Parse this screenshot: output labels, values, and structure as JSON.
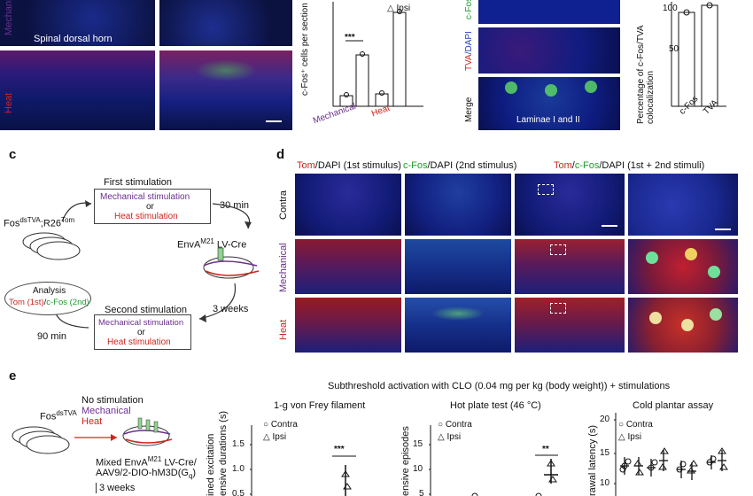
{
  "panel_a": {
    "row_labels": [
      "Mechanical",
      "Heat"
    ],
    "inset_label": "Spinal dorsal horn"
  },
  "panel_b": {
    "ylabel": "c-Fos⁺ cells per section",
    "legend": [
      "Ipsi"
    ],
    "categories": [
      "Mechanical",
      "Heat"
    ],
    "significance": "***"
  },
  "panel_merge": {
    "row_labels_top": "c-Fos",
    "row_label_tva": "TVA",
    "row_label_tva_suffix": "/DAPI",
    "row_label_dapi": "c-Fos/DAPI",
    "row_label_merge": "Merge",
    "inset_label": "Laminae I and II"
  },
  "panel_coloc": {
    "ylabel": "Percentage of c-Fos/TVA colocalization",
    "yticks": [
      "100",
      "50"
    ],
    "categories": [
      "c-Fos",
      "TVA"
    ]
  },
  "panel_c": {
    "letter": "c",
    "first_stimulation": "First stimulation",
    "mech_stim": "Mechanical stimulation",
    "or": "or",
    "heat_stim": "Heat stimulation",
    "min30": "30 min",
    "mouse_label": "Fos",
    "mouse_sup1": "dsTVA",
    "mouse_mid": ";R26",
    "mouse_sup2": "Tom",
    "virus": "EnvA",
    "virus_sup": "M21",
    "virus_suffix": " LV-Cre",
    "weeks3": "3 weeks",
    "second_stimulation": "Second stimulation",
    "min90": "90 min",
    "analysis": "Analysis",
    "analysis_tom": "Tom (1st)",
    "analysis_sep": "/",
    "analysis_cfos": "c-Fos (2nd)"
  },
  "panel_d": {
    "letter": "d",
    "col1_tom": "Tom",
    "col1_rest": "/DAPI (1st stimulus)",
    "col2_cfos": "c-Fos",
    "col2_rest": "/DAPI (2nd stimulus)",
    "col3_tom": "Tom",
    "col3_slash": "/",
    "col3_cfos": "c-Fos",
    "col3_rest": "/DAPI (1st + 2nd stimuli)",
    "rows": [
      "Contra",
      "Mechanical",
      "Heat"
    ]
  },
  "panel_e": {
    "letter": "e",
    "title": "Subthreshold activation with CLO (0.04 mg per kg (body weight)) + stimulations",
    "mouse_label": "Fos",
    "mouse_sup": "dsTVA",
    "conditions": [
      "No stimulation",
      "Mechanical",
      "Heat"
    ],
    "virus_line1": "Mixed EnvA",
    "virus_sup": "M21",
    "virus_line1_suffix": " LV-Cre/",
    "virus_line2": "AAV9/2-DIO-hM3D(G",
    "virus_line2_sub": "q",
    "virus_line2_end": ")",
    "weeks": "3 weeks",
    "side_label": "ined excitation",
    "subplots": [
      {
        "title": "1-g von Frey filament",
        "ylabel": "ensive durations (s)",
        "legend": [
          "Contra",
          "Ipsi"
        ],
        "yticks": [
          "1.5",
          "1.0",
          "0.5"
        ],
        "significance": "***"
      },
      {
        "title": "Hot plate test (46 °C)",
        "ylabel": "ensive episodes",
        "legend": [
          "Contra",
          "Ipsi"
        ],
        "yticks": [
          "15",
          "10",
          "5"
        ],
        "significance": "**"
      },
      {
        "title": "Cold plantar assay",
        "ylabel": "rawal latency (s)",
        "legend": [
          "Contra",
          "Ipsi"
        ],
        "yticks": [
          "20",
          "15",
          "10"
        ]
      }
    ]
  },
  "colors": {
    "mechanical": "#6b2f8f",
    "heat": "#d0231c",
    "cfos": "#1c9b2c",
    "dapi": "#1f3fc4",
    "micro_bg": "#0a0f3a"
  }
}
